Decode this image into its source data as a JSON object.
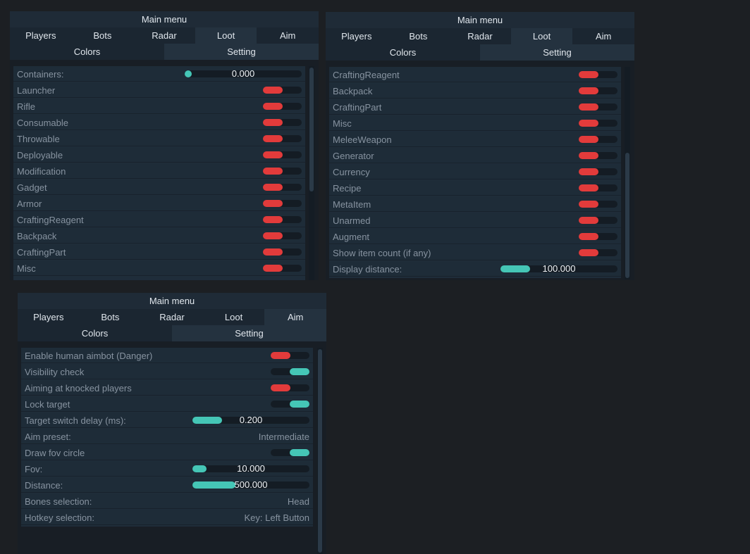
{
  "panel1": {
    "title": "Main menu",
    "tabs": [
      "Players",
      "Bots",
      "Radar",
      "Loot",
      "Aim"
    ],
    "subtabs": [
      "Colors",
      "Setting"
    ],
    "rows": [
      {
        "label": "Containers:",
        "type": "slider",
        "value": "0.000",
        "fill": 0.06
      },
      {
        "label": "Launcher",
        "type": "toggle",
        "on": false
      },
      {
        "label": "Rifle",
        "type": "toggle",
        "on": false
      },
      {
        "label": "Consumable",
        "type": "toggle",
        "on": false
      },
      {
        "label": "Throwable",
        "type": "toggle",
        "on": false
      },
      {
        "label": "Deployable",
        "type": "toggle",
        "on": false
      },
      {
        "label": "Modification",
        "type": "toggle",
        "on": false
      },
      {
        "label": "Gadget",
        "type": "toggle",
        "on": false
      },
      {
        "label": "Armor",
        "type": "toggle",
        "on": false
      },
      {
        "label": "CraftingReagent",
        "type": "toggle",
        "on": false
      },
      {
        "label": "Backpack",
        "type": "toggle",
        "on": false
      },
      {
        "label": "CraftingPart",
        "type": "toggle",
        "on": false
      },
      {
        "label": "Misc",
        "type": "toggle",
        "on": false
      }
    ]
  },
  "panel2": {
    "title": "Main menu",
    "tabs": [
      "Players",
      "Bots",
      "Radar",
      "Loot",
      "Aim"
    ],
    "subtabs": [
      "Colors",
      "Setting"
    ],
    "rows": [
      {
        "label": "CraftingReagent",
        "type": "toggle",
        "on": false
      },
      {
        "label": "Backpack",
        "type": "toggle",
        "on": false
      },
      {
        "label": "CraftingPart",
        "type": "toggle",
        "on": false
      },
      {
        "label": "Misc",
        "type": "toggle",
        "on": false
      },
      {
        "label": "MeleeWeapon",
        "type": "toggle",
        "on": false
      },
      {
        "label": "Generator",
        "type": "toggle",
        "on": false
      },
      {
        "label": "Currency",
        "type": "toggle",
        "on": false
      },
      {
        "label": "Recipe",
        "type": "toggle",
        "on": false
      },
      {
        "label": "MetaItem",
        "type": "toggle",
        "on": false
      },
      {
        "label": "Unarmed",
        "type": "toggle",
        "on": false
      },
      {
        "label": "Augment",
        "type": "toggle",
        "on": false
      },
      {
        "label": "Show item count (if any)",
        "type": "toggle",
        "on": false
      },
      {
        "label": "Display distance:",
        "type": "slider",
        "value": "100.000",
        "fill": 0.25
      }
    ]
  },
  "panel3": {
    "title": "Main menu",
    "tabs": [
      "Players",
      "Bots",
      "Radar",
      "Loot",
      "Aim"
    ],
    "subtabs": [
      "Colors",
      "Setting"
    ],
    "rows": [
      {
        "label": "Enable human aimbot (Danger)",
        "type": "toggle",
        "on": false
      },
      {
        "label": "Visibility check",
        "type": "toggle",
        "on": true
      },
      {
        "label": "Aiming at knocked players",
        "type": "toggle",
        "on": false
      },
      {
        "label": "Lock target",
        "type": "toggle",
        "on": true
      },
      {
        "label": "Target switch delay (ms):",
        "type": "slider",
        "value": "0.200",
        "fill": 0.25
      },
      {
        "label": "Aim preset:",
        "type": "text",
        "value": "Intermediate"
      },
      {
        "label": "Draw fov circle",
        "type": "toggle",
        "on": true
      },
      {
        "label": "Fov:",
        "type": "slider",
        "value": "10.000",
        "fill": 0.12
      },
      {
        "label": "Distance:",
        "type": "slider",
        "value": "500.000",
        "fill": 0.37
      },
      {
        "label": "Bones selection:",
        "type": "text",
        "value": "Head"
      },
      {
        "label": "Hotkey selection:",
        "type": "text",
        "value": "Key: Left Button"
      }
    ]
  },
  "colors": {
    "toggle_off": "#e23b3b",
    "toggle_on": "#45c6b6",
    "slider_fill": "#45c6b6"
  }
}
